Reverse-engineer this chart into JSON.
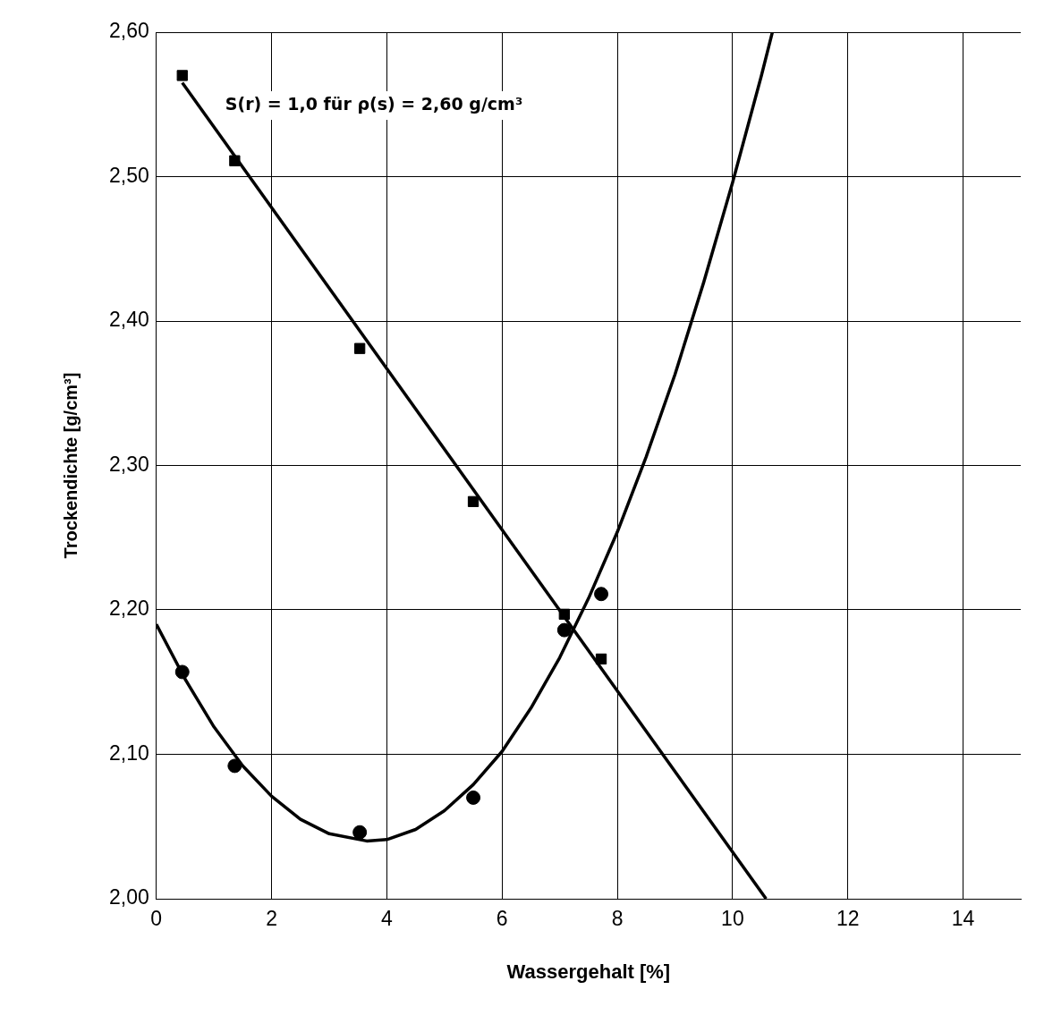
{
  "chart_data": {
    "type": "scatter",
    "xlabel": "Wassergehalt [%]",
    "ylabel": "Trockendichte [g/cm³]",
    "annotations": [
      "S(r) = 1,0 für ρ(s) = 2,60 g/cm³"
    ],
    "xlim": [
      0,
      15
    ],
    "xticks": [
      0,
      2,
      4,
      6,
      8,
      10,
      12,
      14
    ],
    "ylim": [
      2.0,
      2.6
    ],
    "yticks": [
      {
        "value": 2.0,
        "label": "2,00"
      },
      {
        "value": 2.1,
        "label": "2,10"
      },
      {
        "value": 2.2,
        "label": "2,20"
      },
      {
        "value": 2.3,
        "label": "2,30"
      },
      {
        "value": 2.4,
        "label": "2,40"
      },
      {
        "value": 2.5,
        "label": "2,50"
      },
      {
        "value": 2.6,
        "label": "2,60"
      }
    ],
    "grid": true,
    "legend": false,
    "series": [
      {
        "marker": "square",
        "color": "#000000",
        "x": [
          0.45,
          1.36,
          3.53,
          5.5,
          7.08,
          7.72
        ],
        "values": [
          2.57,
          2.511,
          2.381,
          2.275,
          2.197,
          2.166
        ]
      },
      {
        "marker": "circle",
        "color": "#000000",
        "x": [
          0.45,
          1.36,
          3.53,
          5.5,
          7.08,
          7.72
        ],
        "values": [
          2.157,
          2.092,
          2.046,
          2.07,
          2.186,
          2.211
        ]
      },
      {
        "type": "line",
        "marker": "none",
        "color": "#000000",
        "x": [
          0.45,
          10.58
        ],
        "values": [
          2.565,
          2.0
        ]
      },
      {
        "type": "line",
        "marker": "none",
        "color": "#000000",
        "x": [
          0,
          0.5,
          1,
          1.5,
          2,
          2.5,
          3,
          3.65,
          4,
          4.5,
          5,
          5.5,
          6,
          6.5,
          7,
          7.5,
          8,
          8.5,
          9,
          9.5,
          10,
          10.5,
          10.69
        ],
        "values": [
          2.19,
          2.152,
          2.119,
          2.092,
          2.071,
          2.055,
          2.045,
          2.04,
          2.041,
          2.048,
          2.061,
          2.079,
          2.102,
          2.132,
          2.167,
          2.208,
          2.254,
          2.306,
          2.363,
          2.427,
          2.496,
          2.57,
          2.6
        ]
      }
    ]
  }
}
